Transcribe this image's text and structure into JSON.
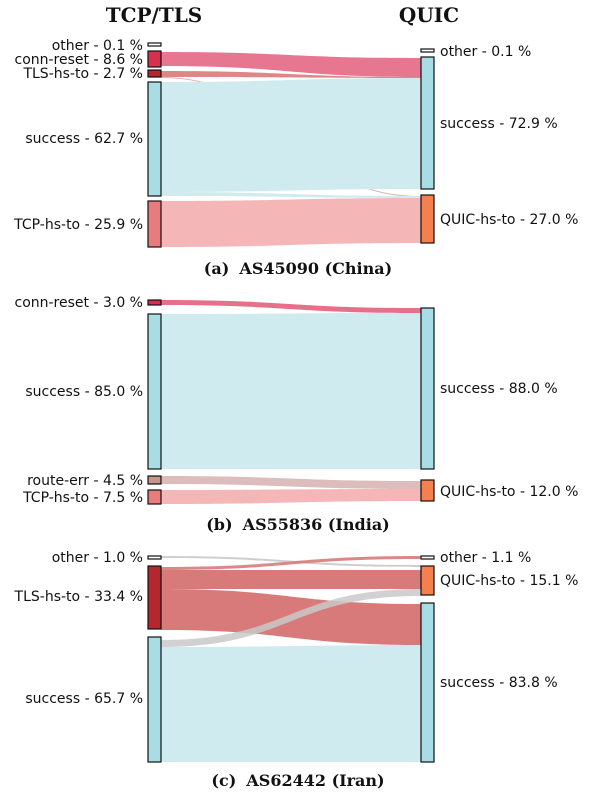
{
  "headers": {
    "left": "TCP/TLS",
    "right": "QUIC"
  },
  "colors": {
    "success": "#a9dde6",
    "success_flow": "#cfebef",
    "conn_reset": "#d62f4f",
    "conn_reset_flow": "#e6708a",
    "tls_hs_to": "#b5272e",
    "tls_hs_to_flow": "#d97a7a",
    "tcp_hs_to": "#e87c7c",
    "tcp_hs_to_flow": "#f4b6b6",
    "route_err": "#c9938e",
    "route_err_flow": "#dcbdbb",
    "quic_hs_to": "#f5804f",
    "other": "#ffffff",
    "other_flow": "#c9c9c9"
  },
  "panels": [
    {
      "caption_tag": "(a)",
      "caption_text": "AS45090 (China)",
      "left_nodes": [
        {
          "label": "other - 0.1 %",
          "key": "other",
          "share": 0.1
        },
        {
          "label": "conn-reset - 8.6 %",
          "key": "conn_reset",
          "share": 8.6
        },
        {
          "label": "TLS-hs-to - 2.7 %",
          "key": "tls_hs_to",
          "share": 2.7
        },
        {
          "label": "success - 62.7 %",
          "key": "success",
          "share": 62.7
        },
        {
          "label": "TCP-hs-to - 25.9 %",
          "key": "tcp_hs_to",
          "share": 25.9
        }
      ],
      "right_nodes": [
        {
          "label": "other - 0.1 %",
          "key": "other",
          "share": 0.1
        },
        {
          "label": "success - 72.9 %",
          "key": "success",
          "share": 72.9
        },
        {
          "label": "QUIC-hs-to - 27.0 %",
          "key": "quic_hs_to",
          "share": 27.0
        }
      ]
    },
    {
      "caption_tag": "(b)",
      "caption_text": "AS55836 (India)",
      "left_nodes": [
        {
          "label": "conn-reset - 3.0 %",
          "key": "conn_reset",
          "share": 3.0
        },
        {
          "label": "success - 85.0 %",
          "key": "success",
          "share": 85.0
        },
        {
          "label": "route-err - 4.5 %",
          "key": "route_err",
          "share": 4.5
        },
        {
          "label": "TCP-hs-to - 7.5 %",
          "key": "tcp_hs_to",
          "share": 7.5
        }
      ],
      "right_nodes": [
        {
          "label": "success - 88.0 %",
          "key": "success",
          "share": 88.0
        },
        {
          "label": "QUIC-hs-to - 12.0 %",
          "key": "quic_hs_to",
          "share": 12.0
        }
      ]
    },
    {
      "caption_tag": "(c)",
      "caption_text": "AS62442 (Iran)",
      "left_nodes": [
        {
          "label": "other - 1.0 %",
          "key": "other",
          "share": 1.0
        },
        {
          "label": "TLS-hs-to - 33.4 %",
          "key": "tls_hs_to",
          "share": 33.4
        },
        {
          "label": "success - 65.7 %",
          "key": "success",
          "share": 65.7
        }
      ],
      "right_nodes": [
        {
          "label": "other - 1.1 %",
          "key": "other",
          "share": 1.1
        },
        {
          "label": "QUIC-hs-to - 15.1 %",
          "key": "quic_hs_to",
          "share": 15.1
        },
        {
          "label": "success - 83.8 %",
          "key": "success",
          "share": 83.8
        }
      ]
    }
  ]
}
